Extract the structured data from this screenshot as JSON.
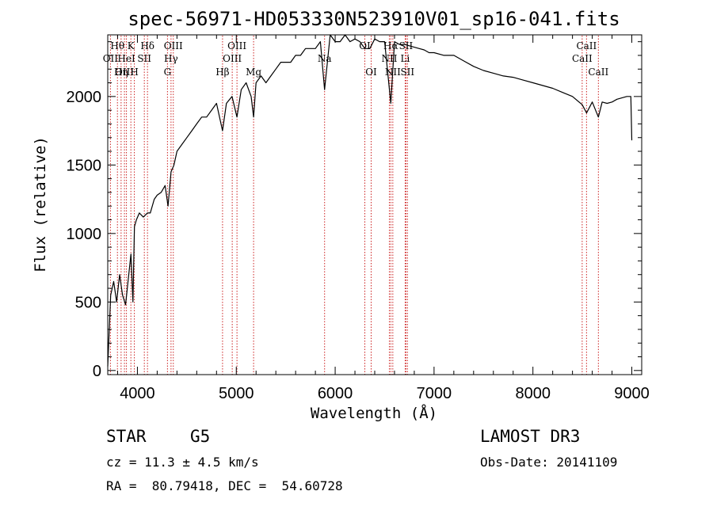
{
  "chart_data": {
    "type": "line",
    "title": "spec-56971-HD053330N523910V01_sp16-041.fits",
    "xlabel": "Wavelength (Å)",
    "ylabel": "Flux (relative)",
    "xlim": [
      3700,
      9100
    ],
    "ylim": [
      -30,
      2450
    ],
    "xticks": [
      4000,
      5000,
      6000,
      7000,
      8000,
      9000
    ],
    "yticks": [
      0,
      500,
      1000,
      1500,
      2000
    ],
    "grid": false,
    "series": [
      {
        "name": "spectrum",
        "color": "#000000",
        "x": [
          3700,
          3730,
          3760,
          3790,
          3820,
          3850,
          3880,
          3905,
          3935,
          3955,
          3970,
          3990,
          4020,
          4060,
          4101,
          4130,
          4170,
          4200,
          4240,
          4280,
          4310,
          4340,
          4370,
          4400,
          4450,
          4500,
          4550,
          4600,
          4650,
          4700,
          4750,
          4800,
          4861,
          4900,
          4957,
          5007,
          5050,
          5100,
          5150,
          5175,
          5200,
          5250,
          5300,
          5350,
          5400,
          5450,
          5500,
          5550,
          5600,
          5650,
          5700,
          5750,
          5800,
          5850,
          5893,
          5950,
          6000,
          6050,
          6100,
          6150,
          6200,
          6250,
          6300,
          6350,
          6400,
          6450,
          6500,
          6563,
          6600,
          6650,
          6700,
          6750,
          6800,
          6850,
          6900,
          6950,
          7000,
          7100,
          7200,
          7300,
          7400,
          7500,
          7600,
          7700,
          7800,
          7900,
          8000,
          8100,
          8200,
          8300,
          8400,
          8498,
          8542,
          8600,
          8662,
          8700,
          8750,
          8800,
          8850,
          8900,
          8950,
          8990,
          9000
        ],
        "y": [
          30,
          550,
          650,
          500,
          700,
          550,
          480,
          650,
          850,
          500,
          1050,
          1100,
          1150,
          1120,
          1150,
          1150,
          1250,
          1280,
          1300,
          1350,
          1200,
          1450,
          1500,
          1600,
          1650,
          1700,
          1750,
          1800,
          1850,
          1850,
          1900,
          1950,
          1750,
          1950,
          2000,
          1850,
          2050,
          2100,
          2000,
          1850,
          2100,
          2150,
          2100,
          2150,
          2200,
          2250,
          2250,
          2250,
          2300,
          2300,
          2350,
          2350,
          2350,
          2400,
          2050,
          2450,
          2400,
          2400,
          2450,
          2400,
          2420,
          2400,
          2350,
          2350,
          2420,
          2400,
          2400,
          1950,
          2400,
          2380,
          2380,
          2370,
          2360,
          2350,
          2340,
          2320,
          2320,
          2300,
          2300,
          2260,
          2220,
          2190,
          2170,
          2150,
          2140,
          2120,
          2100,
          2080,
          2060,
          2030,
          2000,
          1940,
          1880,
          1960,
          1850,
          1960,
          1950,
          1960,
          1980,
          1990,
          2000,
          2000,
          1680
        ]
      }
    ],
    "lines": [
      {
        "name": "Hθ",
        "wl": 3798,
        "row": 1
      },
      {
        "name": "OII",
        "wl": 3727,
        "row": 2
      },
      {
        "name": "OIII",
        "wl": 3869,
        "row": 3
      },
      {
        "name": "K",
        "wl": 3934,
        "row": 1
      },
      {
        "name": "HeI",
        "wl": 3889,
        "row": 2
      },
      {
        "name": "Hη",
        "wl": 3835,
        "row": 3
      },
      {
        "name": "Hδ",
        "wl": 4102,
        "row": 1
      },
      {
        "name": "SII",
        "wl": 4070,
        "row": 2
      },
      {
        "name": "H",
        "wl": 3969,
        "row": 3
      },
      {
        "name": "OIII",
        "wl": 4363,
        "row": 1
      },
      {
        "name": "Hγ",
        "wl": 4340,
        "row": 2
      },
      {
        "name": "G",
        "wl": 4304,
        "row": 3
      },
      {
        "name": "Hβ",
        "wl": 4861,
        "row": 3
      },
      {
        "name": "OIII",
        "wl": 5007,
        "row": 1
      },
      {
        "name": "OIII",
        "wl": 4959,
        "row": 2
      },
      {
        "name": "Mg",
        "wl": 5175,
        "row": 3
      },
      {
        "name": "Na",
        "wl": 5893,
        "row": 2
      },
      {
        "name": "OI",
        "wl": 6300,
        "row": 1
      },
      {
        "name": "OI",
        "wl": 6364,
        "row": 3
      },
      {
        "name": "Hα",
        "wl": 6563,
        "row": 1
      },
      {
        "name": "NII",
        "wl": 6548,
        "row": 2
      },
      {
        "name": "NII",
        "wl": 6583,
        "row": 3
      },
      {
        "name": "SII",
        "wl": 6716,
        "row": 1
      },
      {
        "name": "Li",
        "wl": 6708,
        "row": 2
      },
      {
        "name": "SII",
        "wl": 6731,
        "row": 3
      },
      {
        "name": "CaII",
        "wl": 8542,
        "row": 1
      },
      {
        "name": "CaII",
        "wl": 8498,
        "row": 2
      },
      {
        "name": "CaII",
        "wl": 8662,
        "row": 3
      }
    ]
  },
  "info": {
    "class": "STAR",
    "subclass": "G5",
    "survey": "LAMOST DR3",
    "cz": "cz = 11.3 ± 4.5 km/s",
    "obs_date": "Obs-Date: 20141109",
    "coords": "RA =  80.79418, DEC =  54.60728"
  },
  "colors": {
    "spectrum": "#000000",
    "line_marker": "#cc2222",
    "axis": "#000000"
  }
}
